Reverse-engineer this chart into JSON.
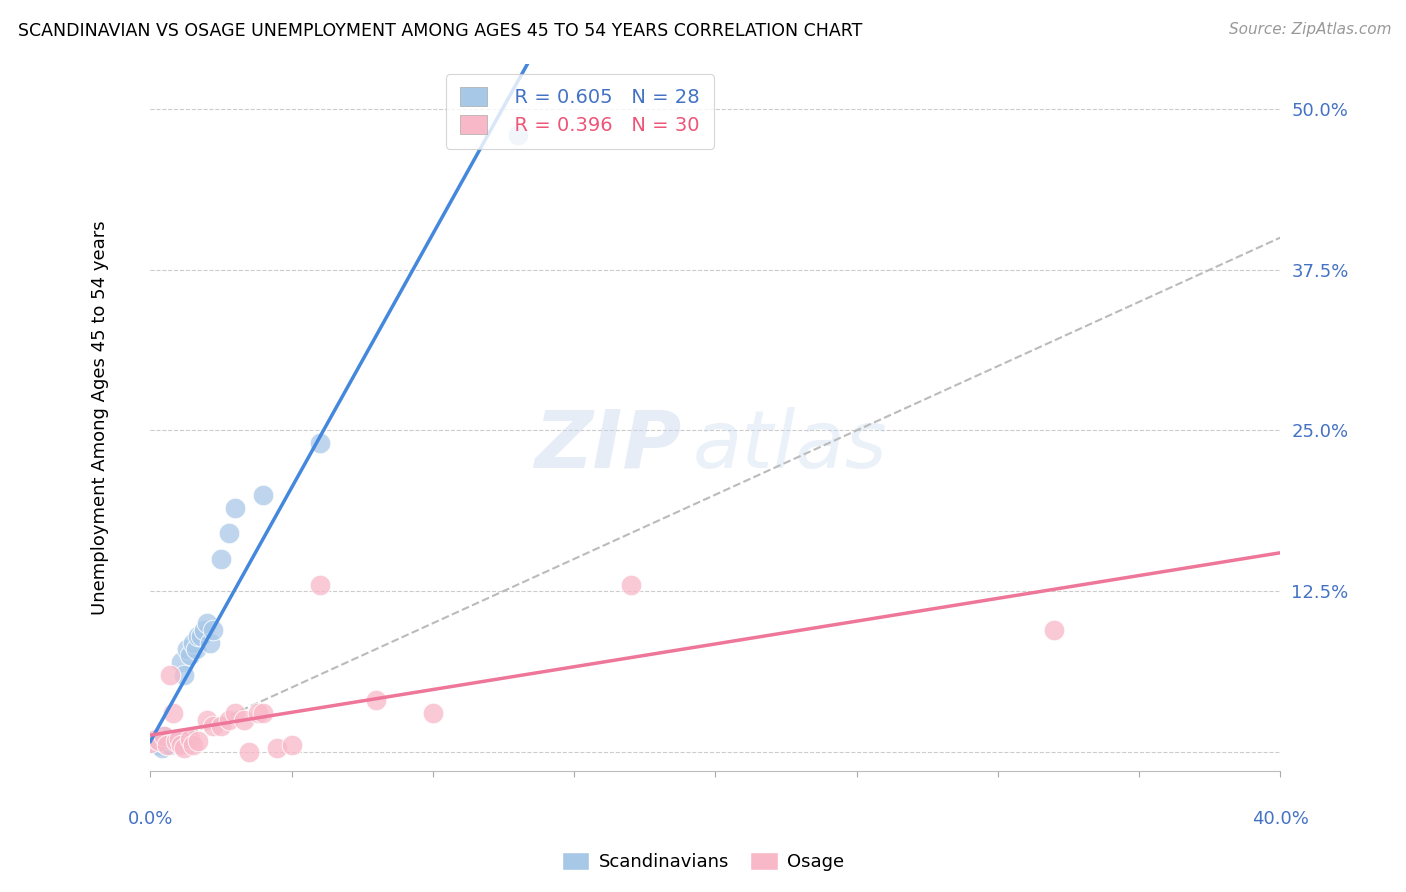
{
  "title": "SCANDINAVIAN VS OSAGE UNEMPLOYMENT AMONG AGES 45 TO 54 YEARS CORRELATION CHART",
  "source": "Source: ZipAtlas.com",
  "ylabel": "Unemployment Among Ages 45 to 54 years",
  "yticks": [
    0.0,
    0.125,
    0.25,
    0.375,
    0.5
  ],
  "ytick_labels": [
    "",
    "12.5%",
    "25.0%",
    "37.5%",
    "50.0%"
  ],
  "xlim": [
    0.0,
    0.4
  ],
  "ylim": [
    -0.015,
    0.535
  ],
  "legend_r_scand": "R = 0.605",
  "legend_n_scand": "N = 28",
  "legend_r_osage": "R = 0.396",
  "legend_n_osage": "N = 30",
  "scand_color": "#A8C8E8",
  "osage_color": "#F8B8C8",
  "scand_line_color": "#4488DD",
  "osage_line_color": "#EE7799",
  "diag_line_color": "#BBBBBB",
  "scand_x": [
    0.003,
    0.004,
    0.005,
    0.005,
    0.006,
    0.007,
    0.008,
    0.009,
    0.01,
    0.01,
    0.011,
    0.012,
    0.013,
    0.014,
    0.015,
    0.016,
    0.017,
    0.018,
    0.019,
    0.02,
    0.021,
    0.022,
    0.025,
    0.028,
    0.03,
    0.04,
    0.06,
    0.13
  ],
  "scand_y": [
    0.005,
    0.003,
    0.007,
    0.012,
    0.006,
    0.005,
    0.008,
    0.01,
    0.01,
    0.007,
    0.07,
    0.06,
    0.08,
    0.075,
    0.085,
    0.08,
    0.09,
    0.09,
    0.095,
    0.1,
    0.085,
    0.095,
    0.15,
    0.17,
    0.19,
    0.2,
    0.24,
    0.48
  ],
  "osage_x": [
    0.0,
    0.002,
    0.003,
    0.005,
    0.006,
    0.007,
    0.008,
    0.009,
    0.01,
    0.011,
    0.012,
    0.014,
    0.015,
    0.017,
    0.02,
    0.022,
    0.025,
    0.028,
    0.03,
    0.033,
    0.035,
    0.038,
    0.04,
    0.045,
    0.05,
    0.06,
    0.08,
    0.1,
    0.17,
    0.32
  ],
  "osage_y": [
    0.007,
    0.01,
    0.008,
    0.012,
    0.005,
    0.06,
    0.03,
    0.008,
    0.01,
    0.005,
    0.003,
    0.01,
    0.005,
    0.008,
    0.025,
    0.02,
    0.02,
    0.025,
    0.03,
    0.025,
    0.0,
    0.03,
    0.03,
    0.003,
    0.005,
    0.13,
    0.04,
    0.03,
    0.13,
    0.095
  ]
}
